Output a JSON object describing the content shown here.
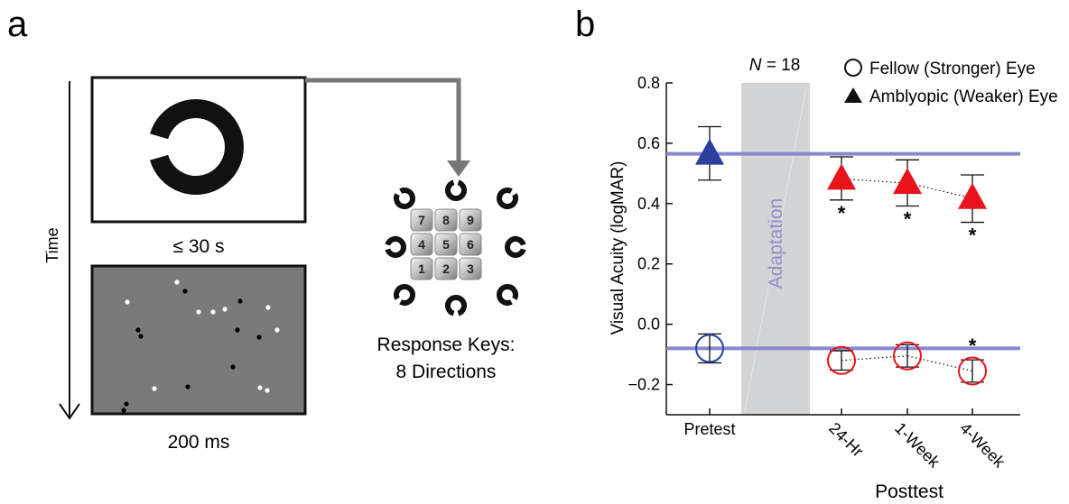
{
  "panel_a": {
    "label": "a",
    "time_axis_label": "Time",
    "stimulus_duration": "≤ 30 s",
    "noise_duration": "200 ms",
    "response_title_line1": "Response Keys:",
    "response_title_line2": "8 Directions",
    "keypad_keys": [
      "7",
      "8",
      "9",
      "4",
      "5",
      "6",
      "1",
      "2",
      "3"
    ],
    "colors": {
      "stimulus_ring": "#111111",
      "noise_background": "#7a7a7a",
      "arrow": "#777777"
    }
  },
  "panel_b": {
    "label": "b",
    "n_label_italic": "N",
    "n_label_rest": " = 18",
    "shaded_label": "Adaptation",
    "xaxis_title": "Posttest"
  },
  "chart_data": {
    "type": "scatter",
    "title": "",
    "xlabel": "Posttest",
    "ylabel": "Visual Acuity (logMAR)",
    "ylim": [
      -0.3,
      0.8
    ],
    "yticks": [
      0.8,
      0.6,
      0.4,
      0.2,
      0.0,
      -0.2
    ],
    "ytick_labels": [
      "0.8",
      "0.6",
      "0.4",
      "0.2",
      "0.0",
      "−0.2"
    ],
    "categories": [
      "Pretest",
      "24-Hr",
      "1-Week",
      "4-Week"
    ],
    "legend_position": "top-right",
    "grid": false,
    "series": [
      {
        "name": "Fellow (Stronger) Eye",
        "marker": "circle-open",
        "values": [
          -0.08,
          -0.12,
          -0.105,
          -0.155
        ],
        "err_low": [
          -0.128,
          -0.152,
          -0.142,
          -0.192
        ],
        "err_high": [
          -0.032,
          -0.088,
          -0.068,
          -0.118
        ],
        "significance": [
          "",
          "",
          "",
          "*"
        ]
      },
      {
        "name": "Amblyopic (Weaker) Eye",
        "marker": "triangle-filled",
        "values": [
          0.565,
          0.482,
          0.468,
          0.418
        ],
        "err_low": [
          0.478,
          0.412,
          0.392,
          0.338
        ],
        "err_high": [
          0.655,
          0.555,
          0.545,
          0.495
        ],
        "significance": [
          "",
          "*",
          "*",
          "*"
        ]
      }
    ],
    "baselines": [
      {
        "series": "Amblyopic (Weaker) Eye",
        "value": 0.565
      },
      {
        "series": "Fellow (Stronger) Eye",
        "value": -0.08
      }
    ],
    "colors": {
      "pretest": "#2a3f9e",
      "posttest": "#e8141c",
      "baseline": "#8888cc",
      "shade": "#d3d4d6"
    }
  }
}
